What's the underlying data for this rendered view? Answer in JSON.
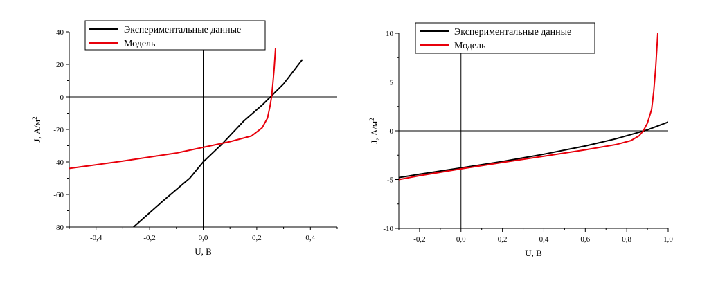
{
  "chart_data": [
    {
      "type": "line",
      "xlabel": "U, В",
      "ylabel": "J, А/м",
      "ylabel_sup": "2",
      "xlim": [
        -0.5,
        0.5
      ],
      "ylim": [
        -80,
        40
      ],
      "x_ticks": [
        -0.4,
        -0.2,
        0.0,
        0.2,
        0.4
      ],
      "x_tick_labels": [
        "-0,4",
        "-0,2",
        "0,0",
        "0,2",
        "0,4"
      ],
      "y_ticks": [
        -80,
        -60,
        -40,
        -20,
        0,
        20,
        40
      ],
      "y_tick_labels": [
        "-80",
        "-60",
        "-40",
        "-20",
        "0",
        "20",
        "40"
      ],
      "grid": false,
      "legend_position": "top-left",
      "series": [
        {
          "name": "Экспериментальные данные",
          "color": "#000000",
          "points": [
            [
              -0.26,
              -80
            ],
            [
              -0.15,
              -64
            ],
            [
              -0.05,
              -50
            ],
            [
              0.0,
              -40
            ],
            [
              0.07,
              -29
            ],
            [
              0.15,
              -15
            ],
            [
              0.22,
              -5
            ],
            [
              0.3,
              8
            ],
            [
              0.37,
              23
            ]
          ]
        },
        {
          "name": "Модель",
          "color": "#e8000b",
          "points": [
            [
              -0.5,
              -44
            ],
            [
              -0.3,
              -39.5
            ],
            [
              -0.1,
              -34.5
            ],
            [
              0.0,
              -31
            ],
            [
              0.1,
              -27.5
            ],
            [
              0.18,
              -24
            ],
            [
              0.22,
              -19
            ],
            [
              0.24,
              -13
            ],
            [
              0.25,
              -5
            ],
            [
              0.255,
              0
            ],
            [
              0.26,
              8
            ],
            [
              0.265,
              18
            ],
            [
              0.27,
              30
            ]
          ]
        }
      ]
    },
    {
      "type": "line",
      "xlabel": "U, В",
      "ylabel": "J, А/м",
      "ylabel_sup": "2",
      "xlim": [
        -0.3,
        1.0
      ],
      "ylim": [
        -10,
        10
      ],
      "x_ticks": [
        -0.2,
        0.0,
        0.2,
        0.4,
        0.6,
        0.8,
        1.0
      ],
      "x_tick_labels": [
        "-0,2",
        "0,0",
        "0,2",
        "0,4",
        "0,6",
        "0,8",
        "1,0"
      ],
      "y_ticks": [
        -10,
        -5,
        0,
        5,
        10
      ],
      "y_tick_labels": [
        "-10",
        "-5",
        "0",
        "5",
        "10"
      ],
      "grid": false,
      "legend_position": "top-left",
      "series": [
        {
          "name": "Экспериментальные данные",
          "color": "#000000",
          "points": [
            [
              -0.3,
              -4.8
            ],
            [
              -0.2,
              -4.45
            ],
            [
              0.0,
              -3.8
            ],
            [
              0.2,
              -3.15
            ],
            [
              0.4,
              -2.4
            ],
            [
              0.6,
              -1.55
            ],
            [
              0.75,
              -0.8
            ],
            [
              0.85,
              -0.2
            ],
            [
              0.9,
              0.1
            ],
            [
              0.95,
              0.5
            ],
            [
              1.0,
              0.9
            ]
          ]
        },
        {
          "name": "Модель",
          "color": "#e8000b",
          "points": [
            [
              -0.3,
              -5.0
            ],
            [
              -0.2,
              -4.6
            ],
            [
              0.0,
              -3.9
            ],
            [
              0.2,
              -3.25
            ],
            [
              0.4,
              -2.6
            ],
            [
              0.6,
              -1.95
            ],
            [
              0.75,
              -1.4
            ],
            [
              0.82,
              -1.0
            ],
            [
              0.86,
              -0.5
            ],
            [
              0.88,
              0.0
            ],
            [
              0.9,
              0.8
            ],
            [
              0.92,
              2.2
            ],
            [
              0.93,
              4.0
            ],
            [
              0.94,
              6.5
            ],
            [
              0.95,
              10
            ]
          ]
        }
      ]
    }
  ]
}
